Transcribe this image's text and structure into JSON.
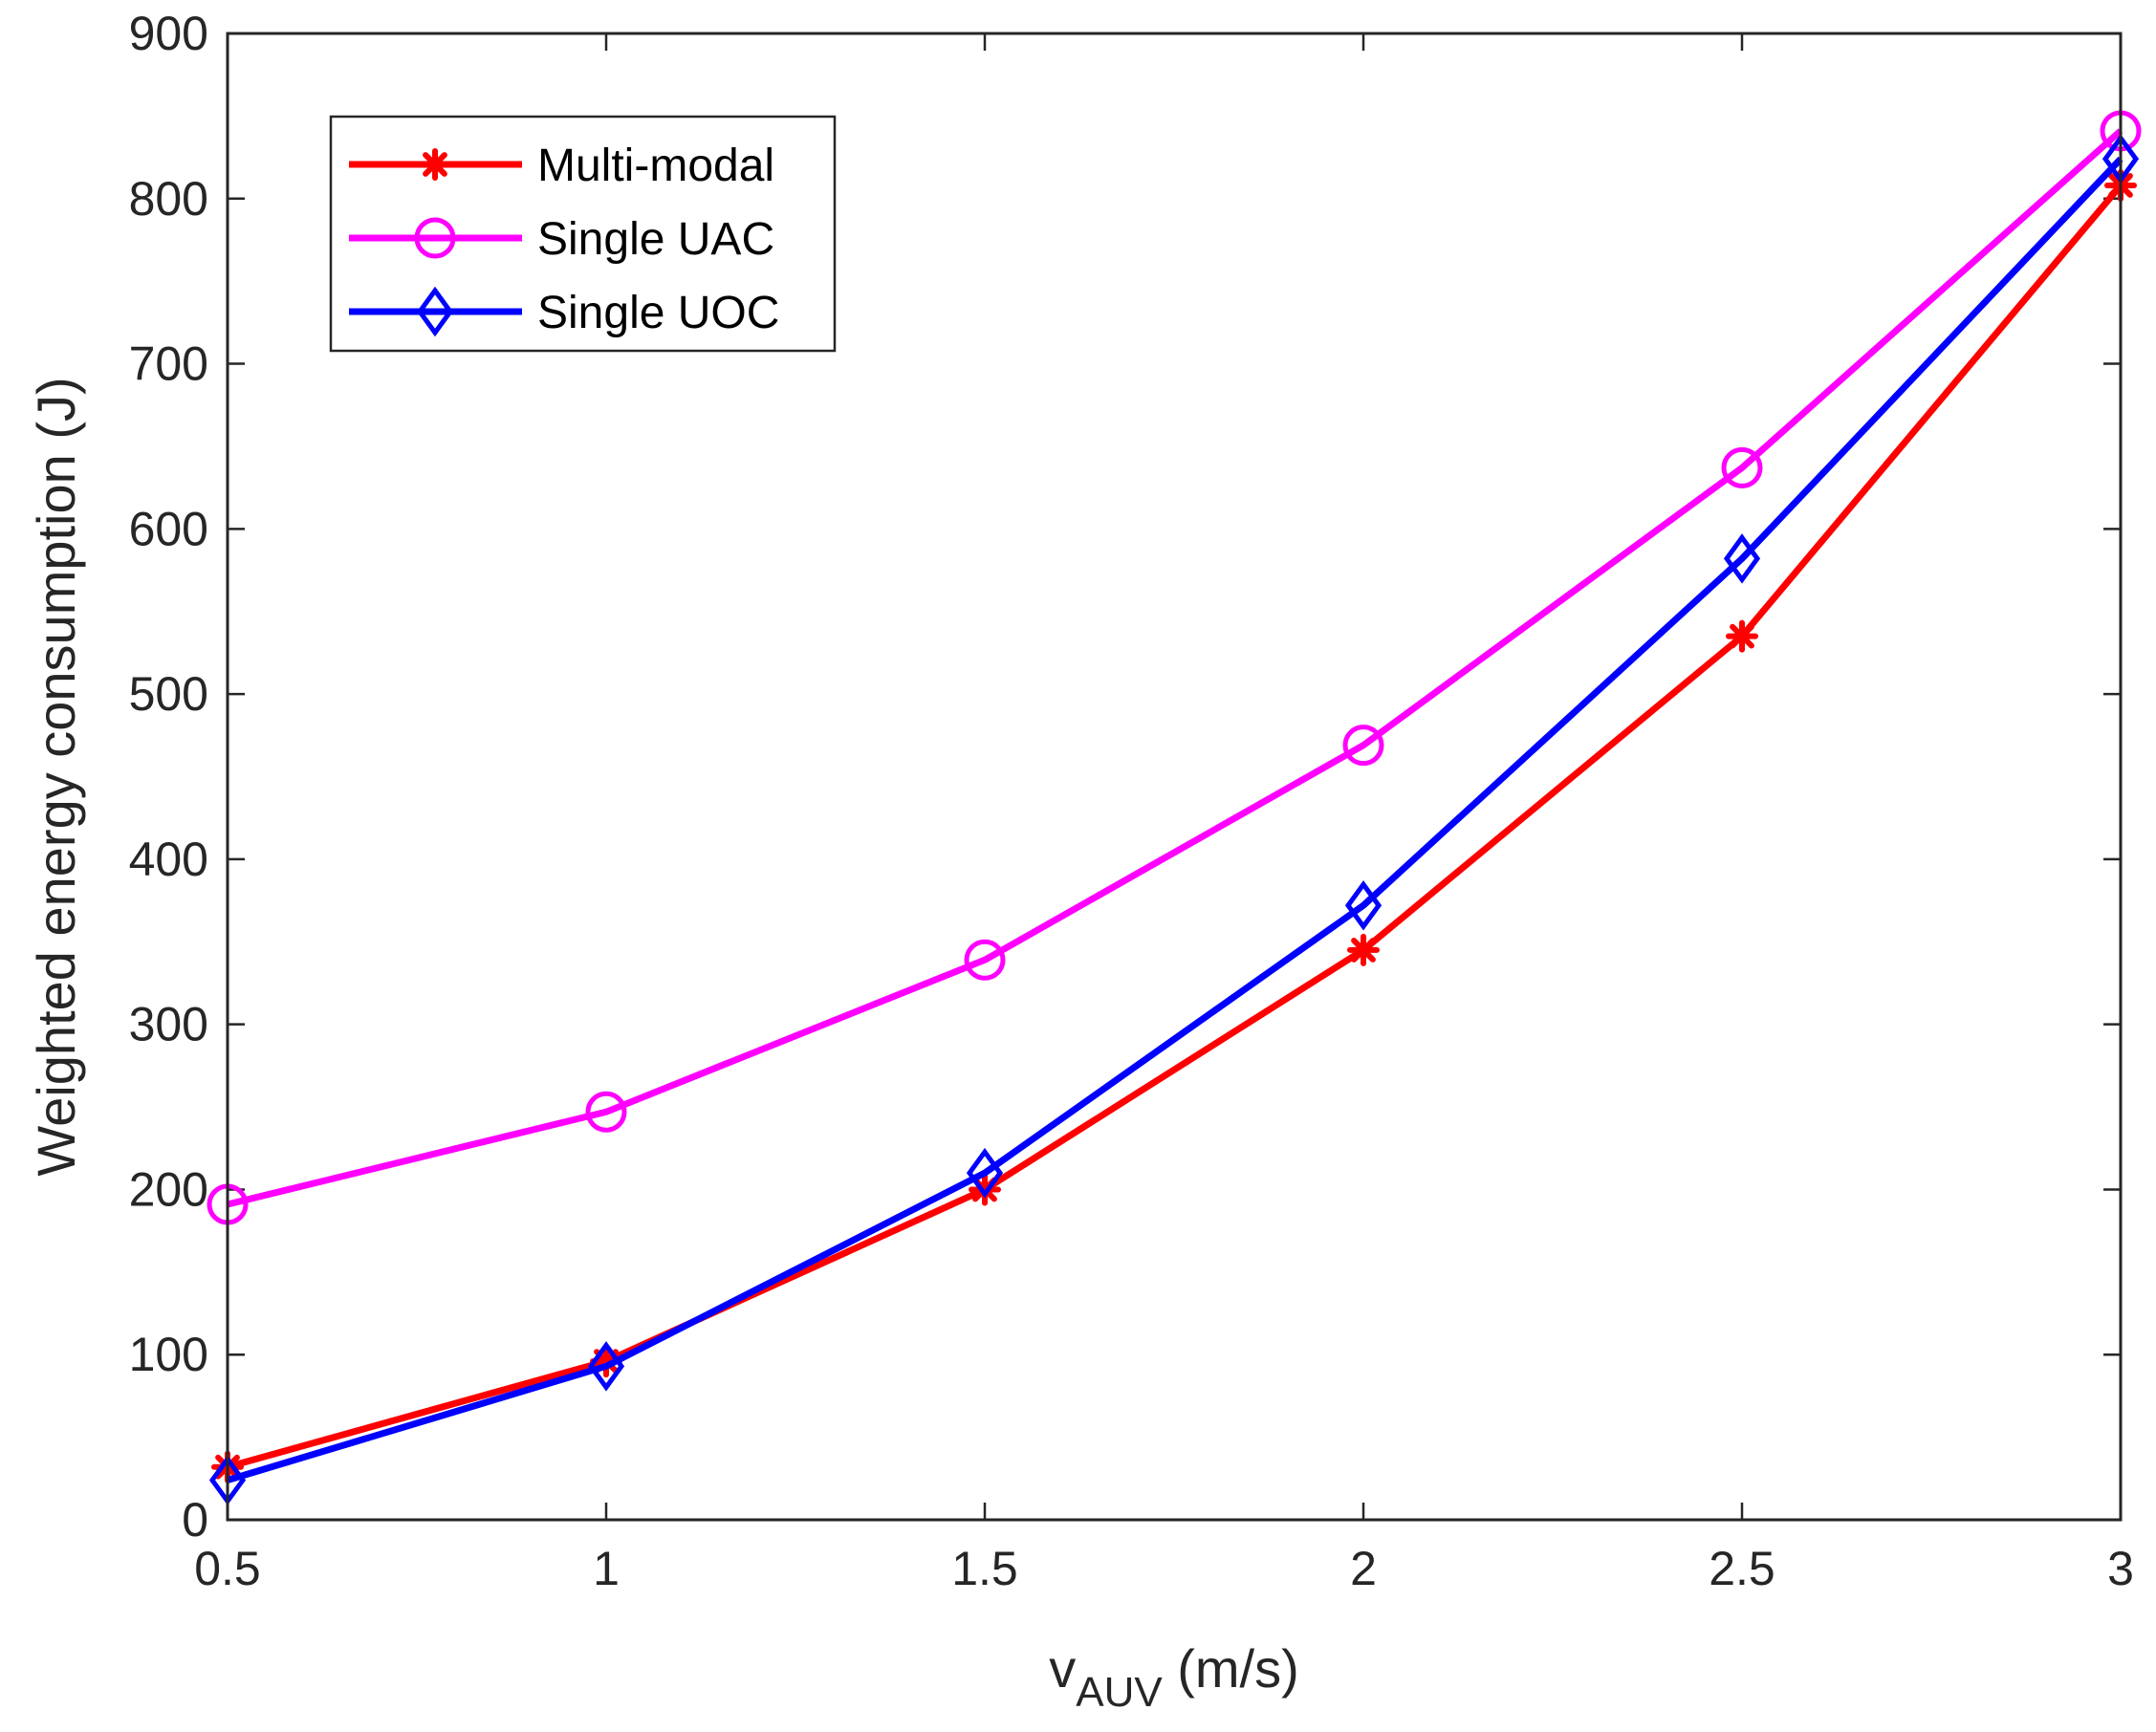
{
  "chart_data": {
    "type": "line",
    "x": [
      0.5,
      1,
      1.5,
      2,
      2.5,
      3
    ],
    "series": [
      {
        "name": "Multi-modal",
        "color": "#ff0000",
        "marker": "asterisk",
        "values": [
          32,
          96,
          200,
          345,
          535,
          808
        ]
      },
      {
        "name": "Single UAC",
        "color": "#ff00ff",
        "marker": "circle",
        "values": [
          191,
          247,
          339,
          469,
          637,
          841
        ]
      },
      {
        "name": "Single UOC",
        "color": "#0000ff",
        "marker": "diamond",
        "values": [
          24,
          93,
          210,
          372,
          582,
          824
        ]
      }
    ],
    "xticks": [
      "0.5",
      "1",
      "1.5",
      "2",
      "2.5",
      "3"
    ],
    "yticks": [
      "0",
      "100",
      "200",
      "300",
      "400",
      "500",
      "600",
      "700",
      "800",
      "900"
    ],
    "xlabel_main": "v",
    "xlabel_sub": "AUV",
    "xlabel_unit": " (m/s)",
    "ylabel": "Weighted energy consumption (J)",
    "xlim": [
      0.5,
      3
    ],
    "ylim": [
      0,
      900
    ],
    "grid": false,
    "legend_position": "top-left"
  }
}
